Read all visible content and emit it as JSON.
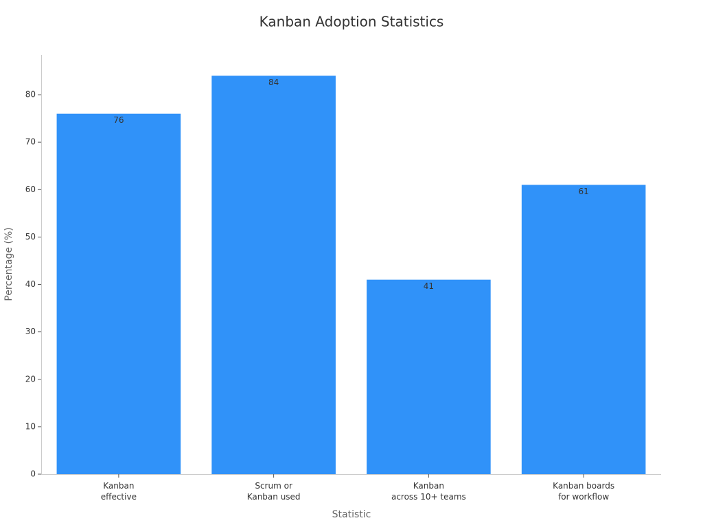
{
  "chart_data": {
    "type": "bar",
    "title": "Kanban Adoption Statistics",
    "x_label": "Statistic",
    "y_label": "Percentage (%)",
    "categories": [
      "Kanban\neffective",
      "Scrum or\nKanban used",
      "Kanban\nacross 10+ teams",
      "Kanban boards\nfor workflow"
    ],
    "values": [
      76,
      84,
      41,
      61
    ],
    "color": "#3092f9",
    "ylim": [
      0,
      88.4
    ],
    "yticks": [
      0,
      10,
      20,
      30,
      40,
      50,
      60,
      70,
      80
    ],
    "grid": false
  }
}
